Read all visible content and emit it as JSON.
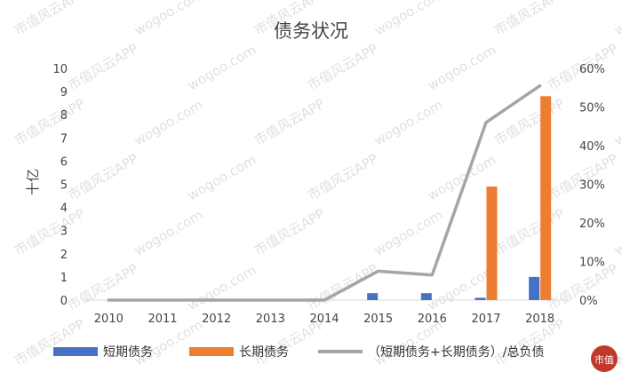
{
  "chart_data": {
    "type": "bar+line",
    "title": "债务状况",
    "ylabel": "十亿",
    "categories": [
      "2010",
      "2011",
      "2012",
      "2013",
      "2014",
      "2015",
      "2016",
      "2017",
      "2018"
    ],
    "ylim": [
      0,
      10
    ],
    "y_ticks": [
      "0",
      "1",
      "2",
      "3",
      "4",
      "5",
      "6",
      "7",
      "8",
      "9",
      "10"
    ],
    "y2lim": [
      0,
      0.6
    ],
    "y2_ticks": [
      "0%",
      "10%",
      "20%",
      "30%",
      "40%",
      "50%",
      "60%"
    ],
    "series": [
      {
        "name": "短期债务",
        "axis": "left",
        "kind": "bar",
        "color": "#4472C4",
        "values": [
          0,
          0,
          0,
          0,
          0,
          0.3,
          0.3,
          0.1,
          1.0
        ]
      },
      {
        "name": "长期债务",
        "axis": "left",
        "kind": "bar",
        "color": "#ED7D31",
        "values": [
          0,
          0,
          0,
          0,
          0,
          0,
          0,
          4.9,
          8.8
        ]
      },
      {
        "name": "（短期债务+长期债务）/总负债",
        "axis": "right",
        "kind": "line",
        "color": "#A5A5A5",
        "values": [
          0,
          0,
          0,
          0,
          0,
          0.075,
          0.065,
          0.46,
          0.555
        ]
      }
    ],
    "grid": false,
    "legend": "bottom"
  },
  "watermark": {
    "text_a": "市值风云APP",
    "text_b": "wogoo.com"
  },
  "logo": {
    "text": "市值",
    "color": "#c0392b"
  }
}
